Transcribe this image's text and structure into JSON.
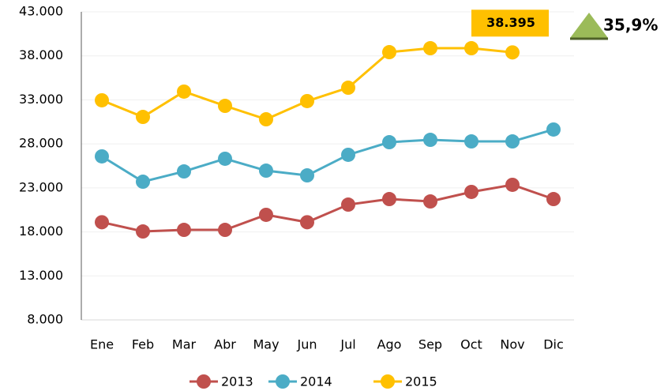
{
  "chart_data": {
    "type": "line",
    "categories": [
      "Ene",
      "Feb",
      "Mar",
      "Abr",
      "May",
      "Jun",
      "Jul",
      "Ago",
      "Sep",
      "Oct",
      "Nov",
      "Dic"
    ],
    "series": [
      {
        "name": "2013",
        "color": "#c0504d",
        "values": [
          19100,
          18050,
          18230,
          18230,
          19940,
          19100,
          21100,
          21730,
          21460,
          22540,
          23350,
          21730
        ]
      },
      {
        "name": "2014",
        "color": "#4bacc6",
        "values": [
          26580,
          23700,
          24870,
          26310,
          24960,
          24420,
          26760,
          28190,
          28460,
          28280,
          28280,
          29630
        ]
      },
      {
        "name": "2015",
        "color": "#ffc000",
        "values": [
          32950,
          31060,
          33940,
          32320,
          30790,
          32860,
          34380,
          38420,
          38870,
          38870,
          38395,
          null
        ],
        "value_labels": [
          null,
          null,
          null,
          null,
          null,
          null,
          null,
          null,
          null,
          null,
          "38.395",
          null
        ]
      }
    ],
    "annotation": "35,9%",
    "ylim": [
      8000,
      43000
    ],
    "yticks": [
      {
        "value": 8000,
        "label": "8.000"
      },
      {
        "value": 13000,
        "label": "13.000"
      },
      {
        "value": 18000,
        "label": "18.000"
      },
      {
        "value": 23000,
        "label": "23.000"
      },
      {
        "value": 28000,
        "label": "28.000"
      },
      {
        "value": 33000,
        "label": "33.000"
      },
      {
        "value": 38000,
        "label": "38.000"
      },
      {
        "value": 43000,
        "label": "43.000"
      }
    ],
    "grid": true,
    "legend": "bottom"
  }
}
